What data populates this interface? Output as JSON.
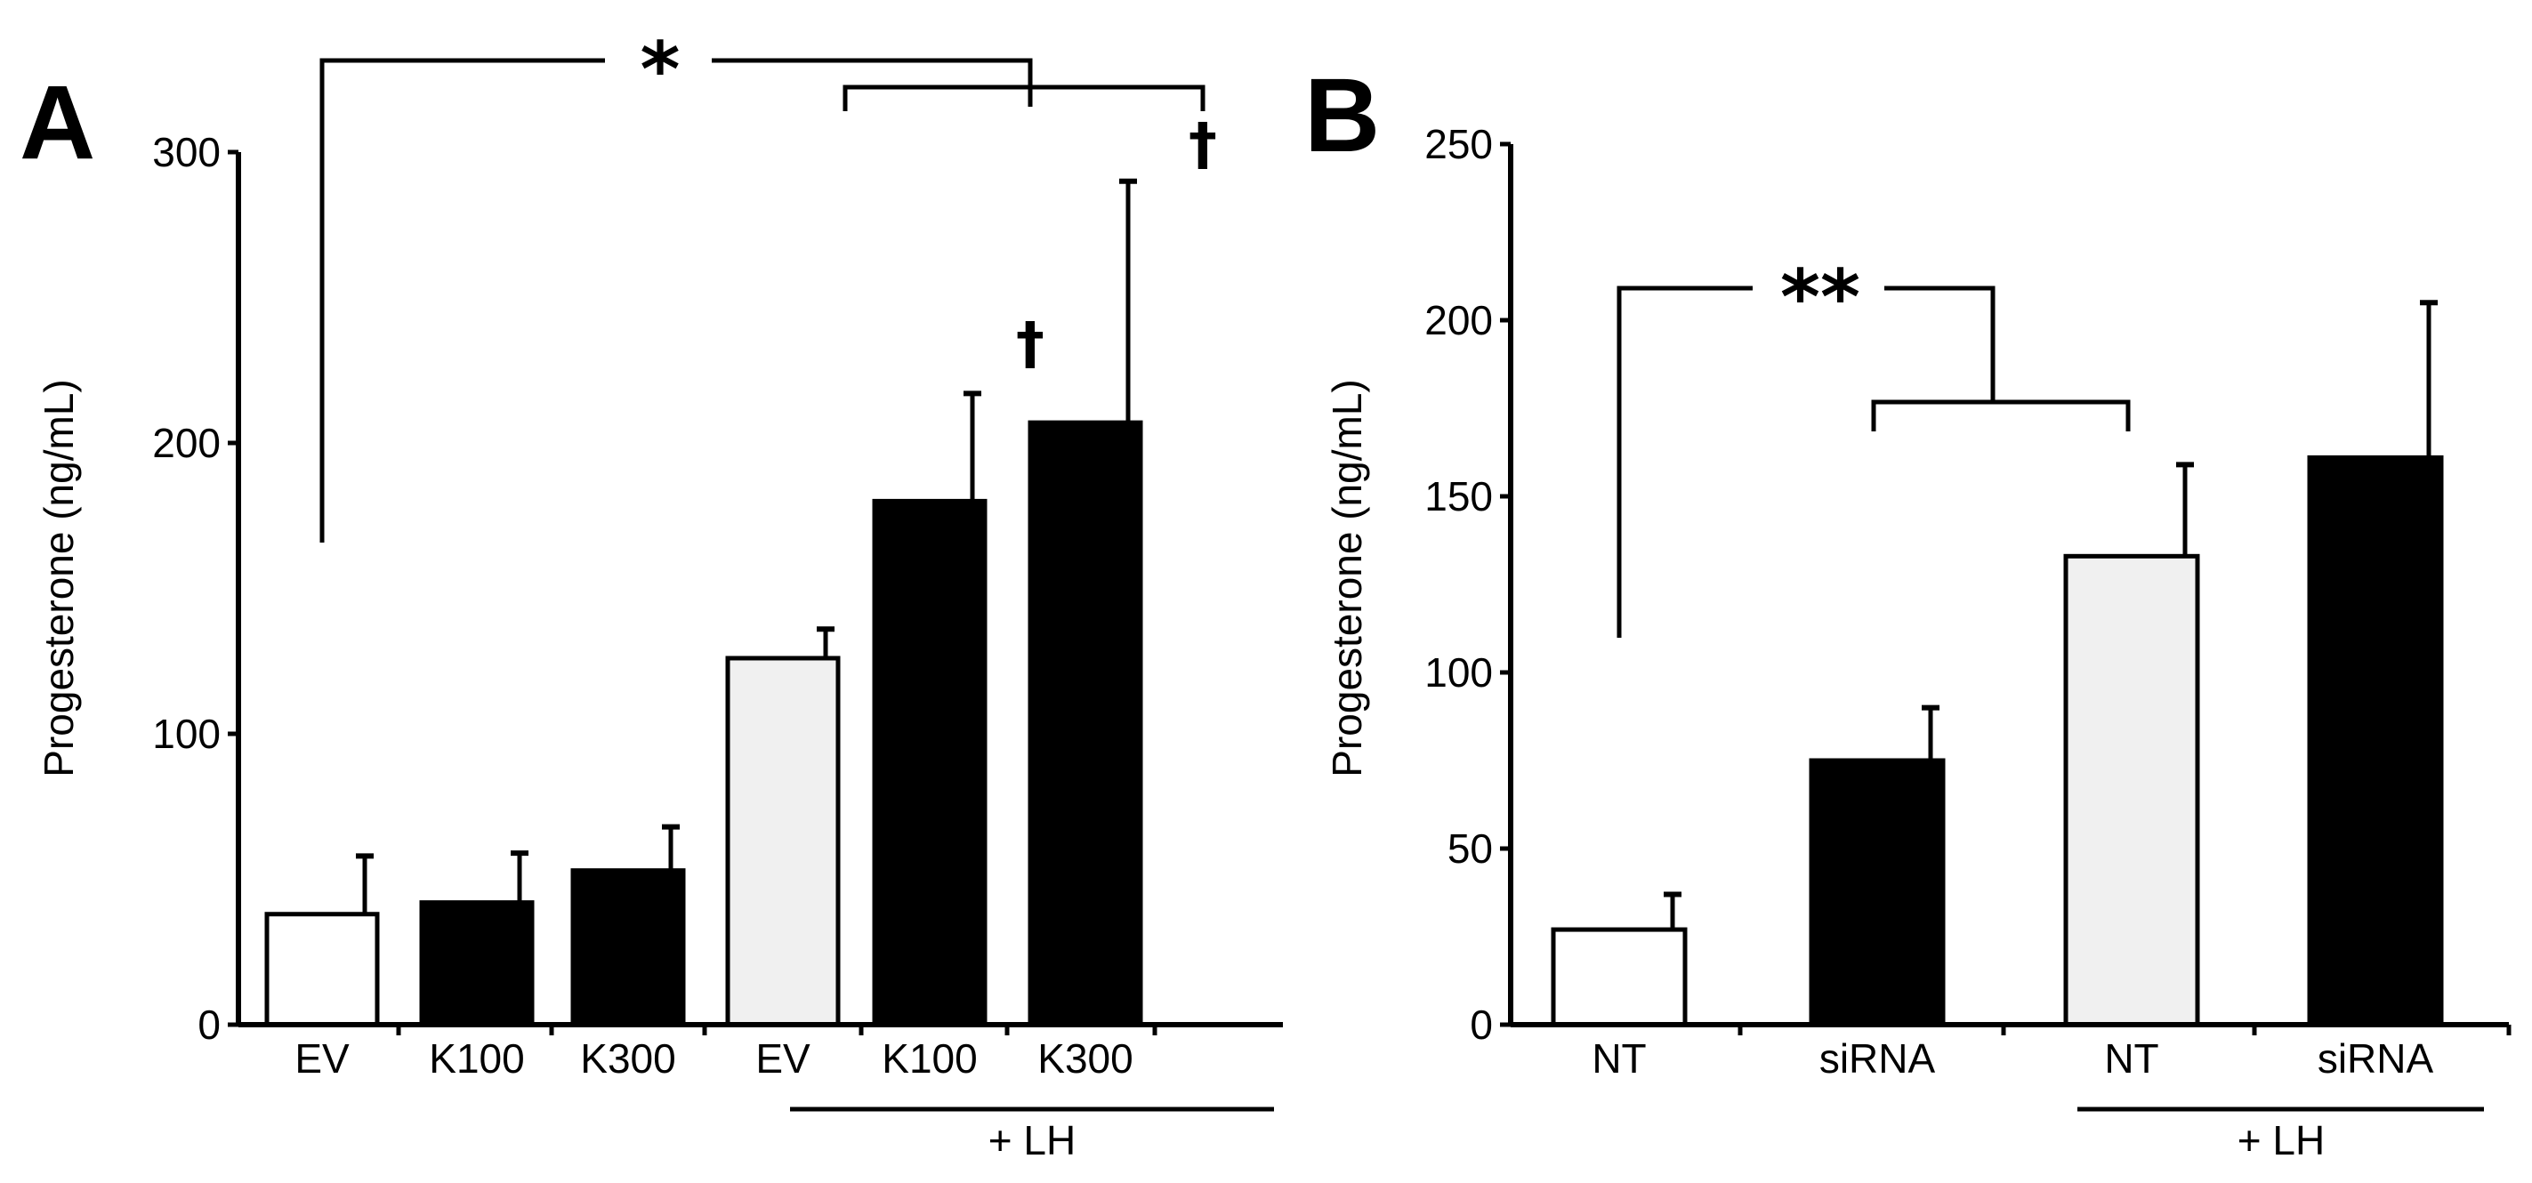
{
  "chart_data": [
    {
      "panel": "A",
      "type": "bar",
      "ylabel": "Progesterone (ng/mL)",
      "ylim": [
        0,
        300
      ],
      "yticks": [
        "0",
        "100",
        "200",
        "300"
      ],
      "categories": [
        "EV",
        "K100",
        "K300",
        "EV",
        "K100",
        "K300"
      ],
      "values": [
        38,
        42,
        53,
        126,
        180,
        207
      ],
      "errors": [
        20,
        17,
        15,
        10,
        37,
        83
      ],
      "fills": [
        "#ffffff",
        "#000000",
        "#000000",
        "#f0f0f0",
        "#000000",
        "#000000"
      ],
      "bar_annotations": [
        "",
        "",
        "",
        "",
        "†",
        "†"
      ],
      "group_label": "+ LH",
      "significance": "*"
    },
    {
      "panel": "B",
      "type": "bar",
      "ylabel": "Progesterone (ng/mL)",
      "ylim": [
        0,
        250
      ],
      "yticks": [
        "0",
        "50",
        "100",
        "150",
        "200",
        "250"
      ],
      "categories": [
        "NT",
        "siRNA",
        "NT",
        "siRNA"
      ],
      "values": [
        27,
        75,
        133,
        161
      ],
      "errors": [
        10,
        15,
        26,
        44
      ],
      "fills": [
        "#ffffff",
        "#000000",
        "#f0f0f0",
        "#000000"
      ],
      "group_label": "+ LH",
      "significance": "**"
    }
  ]
}
